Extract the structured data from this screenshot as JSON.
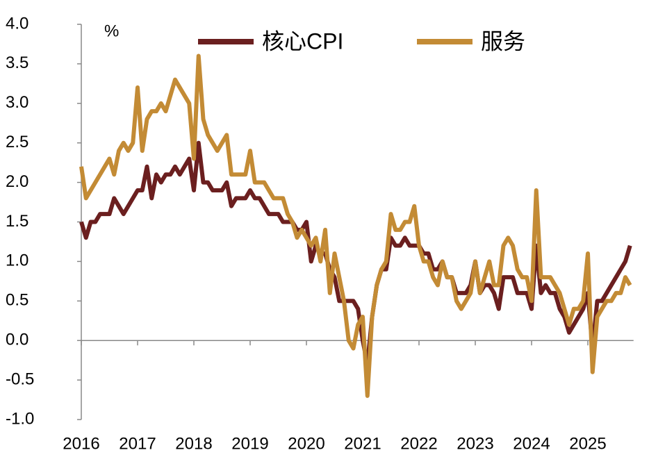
{
  "chart_data": {
    "type": "line",
    "y_unit": "%",
    "categories": [
      "2016",
      null,
      null,
      null,
      null,
      null,
      null,
      null,
      null,
      null,
      null,
      null,
      "2017",
      null,
      null,
      null,
      null,
      null,
      null,
      null,
      null,
      null,
      null,
      null,
      "2018",
      null,
      null,
      null,
      null,
      null,
      null,
      null,
      null,
      null,
      null,
      null,
      "2019",
      null,
      null,
      null,
      null,
      null,
      null,
      null,
      null,
      null,
      null,
      null,
      "2020",
      null,
      null,
      null,
      null,
      null,
      null,
      null,
      null,
      null,
      null,
      null,
      "2021",
      null,
      null,
      null,
      null,
      null,
      null,
      null,
      null,
      null,
      null,
      null,
      "2022",
      null,
      null,
      null,
      null,
      null,
      null,
      null,
      null,
      null,
      null,
      null,
      "2023",
      null,
      null,
      null,
      null,
      null,
      null,
      null,
      null,
      null,
      null,
      null,
      "2024",
      null,
      null,
      null,
      null,
      null,
      null,
      null,
      null,
      null,
      null,
      null,
      "2025",
      null,
      null,
      null,
      null,
      null,
      null,
      null,
      null,
      null
    ],
    "series": [
      {
        "name": "核心CPI",
        "color": "#6b1f1f",
        "values": [
          1.5,
          1.3,
          1.5,
          1.5,
          1.6,
          1.6,
          1.6,
          1.8,
          1.7,
          1.6,
          1.7,
          1.8,
          1.9,
          1.9,
          2.2,
          1.8,
          2.1,
          2.0,
          2.1,
          2.1,
          2.2,
          2.1,
          2.2,
          2.3,
          1.9,
          2.5,
          2.0,
          2.0,
          1.9,
          1.9,
          1.9,
          2.0,
          1.7,
          1.8,
          1.8,
          1.8,
          1.9,
          1.8,
          1.8,
          1.7,
          1.6,
          1.6,
          1.6,
          1.5,
          1.5,
          1.5,
          1.4,
          1.4,
          1.5,
          1.0,
          1.2,
          1.1,
          1.1,
          0.9,
          0.8,
          0.5,
          0.5,
          0.5,
          0.5,
          0.4,
          0.0,
          -0.3,
          0.3,
          0.7,
          0.9,
          0.9,
          1.3,
          1.2,
          1.2,
          1.3,
          1.2,
          1.2,
          1.2,
          1.1,
          1.1,
          0.9,
          0.9,
          1.0,
          0.8,
          0.8,
          0.6,
          0.6,
          0.6,
          0.7,
          1.0,
          0.6,
          0.7,
          0.7,
          0.6,
          0.4,
          0.8,
          0.8,
          0.8,
          0.6,
          0.6,
          0.6,
          0.4,
          1.2,
          0.6,
          0.7,
          0.6,
          0.6,
          0.4,
          0.3,
          0.1,
          0.2,
          0.3,
          0.4,
          0.6,
          -0.1,
          0.5,
          0.5,
          0.6,
          0.7,
          0.8,
          0.9,
          1.0,
          1.2
        ]
      },
      {
        "name": "服务",
        "color": "#c38b35",
        "values": [
          2.2,
          1.8,
          1.9,
          2.0,
          2.1,
          2.2,
          2.3,
          2.1,
          2.4,
          2.5,
          2.4,
          2.5,
          3.2,
          2.4,
          2.8,
          2.9,
          2.9,
          3.0,
          2.9,
          3.1,
          3.3,
          3.2,
          3.1,
          3.0,
          2.3,
          3.6,
          2.8,
          2.6,
          2.5,
          2.4,
          2.5,
          2.6,
          2.1,
          2.1,
          2.1,
          2.1,
          2.4,
          2.0,
          2.0,
          2.0,
          1.9,
          1.8,
          1.8,
          1.8,
          1.6,
          1.5,
          1.3,
          1.4,
          1.3,
          1.2,
          1.3,
          1.0,
          1.4,
          0.6,
          1.1,
          0.8,
          0.5,
          0.0,
          -0.1,
          0.2,
          0.3,
          -0.7,
          0.3,
          0.7,
          0.9,
          1.0,
          1.6,
          1.4,
          1.4,
          1.5,
          1.5,
          1.7,
          1.2,
          1.0,
          1.0,
          0.8,
          0.7,
          1.0,
          0.8,
          0.8,
          0.5,
          0.4,
          0.5,
          0.6,
          1.0,
          0.6,
          0.8,
          1.0,
          0.7,
          0.7,
          1.2,
          1.3,
          1.2,
          0.9,
          0.8,
          0.8,
          0.5,
          1.9,
          0.8,
          0.8,
          0.8,
          0.7,
          0.6,
          0.4,
          0.2,
          0.4,
          0.4,
          0.5,
          1.1,
          -0.4,
          0.3,
          0.4,
          0.5,
          0.5,
          0.6,
          0.6,
          0.8,
          0.7
        ]
      }
    ],
    "ylim": [
      -1,
      4
    ],
    "yticks": [
      {
        "value": -1,
        "label": "-1.0"
      },
      {
        "value": -0.5,
        "label": "-0.5"
      },
      {
        "value": 0,
        "label": "0.0"
      },
      {
        "value": 0.5,
        "label": "0.5"
      },
      {
        "value": 1,
        "label": "1.0"
      },
      {
        "value": 1.5,
        "label": "1.5"
      },
      {
        "value": 2,
        "label": "2.0"
      },
      {
        "value": 2.5,
        "label": "2.5"
      },
      {
        "value": 3,
        "label": "3.0"
      },
      {
        "value": 3.5,
        "label": "3.5"
      },
      {
        "value": 4,
        "label": "4.0"
      }
    ],
    "grid": false,
    "legend": "top"
  }
}
